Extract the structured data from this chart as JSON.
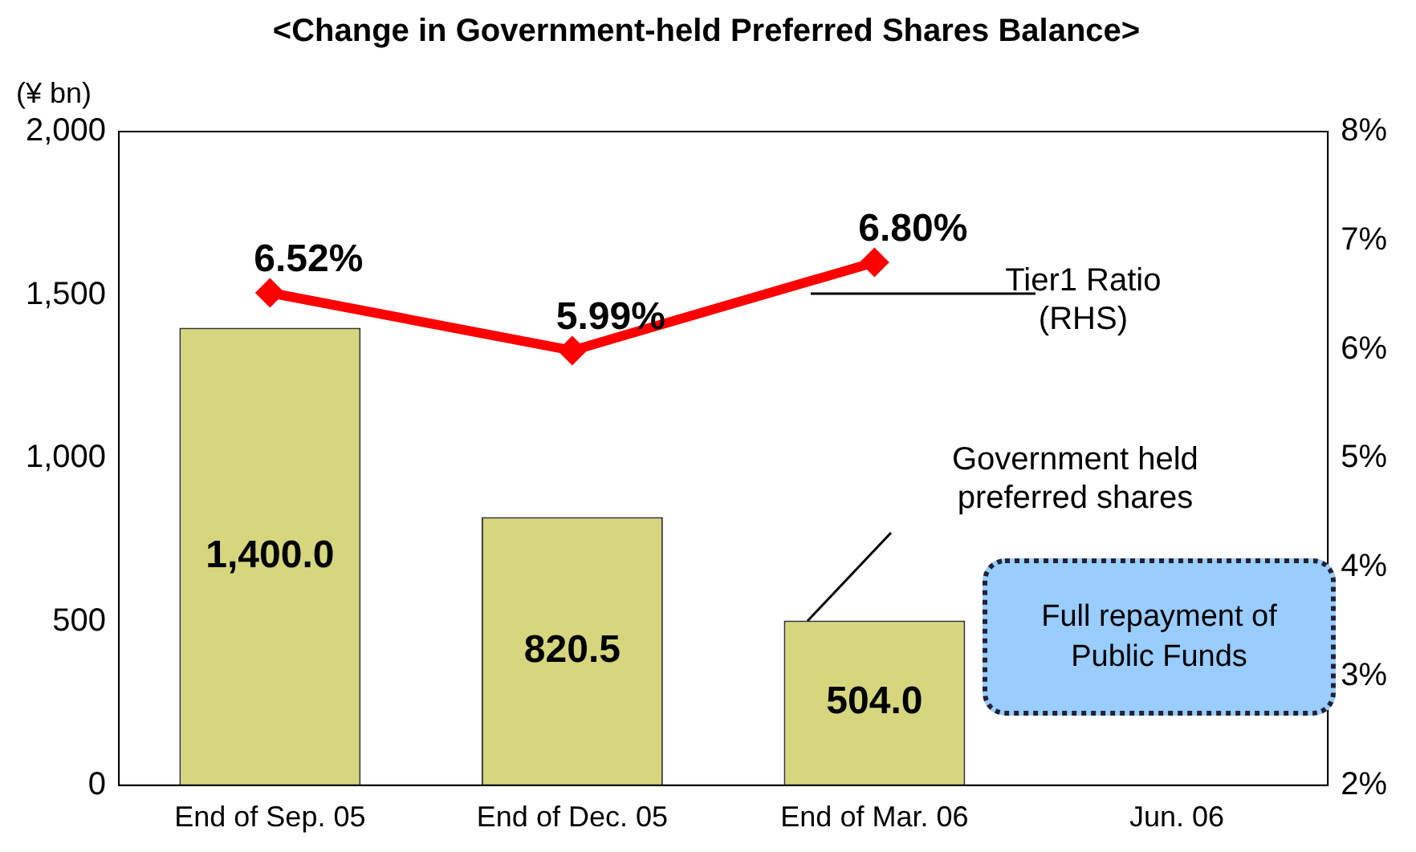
{
  "chart_data": {
    "type": "bar",
    "title": "<Change in Government-held Preferred Shares Balance>",
    "ylabel": "(¥ bn)",
    "categories": [
      "End of Sep. 05",
      "End of Dec. 05",
      "End of Mar. 06",
      "Jun. 06"
    ],
    "series": [
      {
        "name": "Government held preferred shares",
        "color": "#d6d67e",
        "values": [
          1400.0,
          820.5,
          504.0,
          null
        ],
        "value_labels": [
          "1,400.0",
          "820.5",
          "504.0",
          null
        ]
      },
      {
        "name": "Tier1 Ratio (RHS)",
        "type": "line",
        "axis": "y2",
        "color": "#ff0000",
        "marker": "diamond",
        "values": [
          6.52,
          5.99,
          6.8,
          null
        ],
        "value_labels": [
          "6.52%",
          "5.99%",
          "6.80%",
          null
        ]
      }
    ],
    "ylim": [
      0,
      2000
    ],
    "yticks": [
      0,
      {
        "value": 500,
        "label": "500"
      },
      {
        "value": 1000,
        "label": "1,000"
      },
      {
        "value": 1500,
        "label": "1,500"
      },
      {
        "value": 2000,
        "label": "2,000"
      }
    ],
    "y2lim": [
      2,
      8
    ],
    "y2ticks": [
      {
        "value": 2,
        "label": "2%"
      },
      {
        "value": 3,
        "label": "3%"
      },
      {
        "value": 4,
        "label": "4%"
      },
      {
        "value": 5,
        "label": "5%"
      },
      {
        "value": 6,
        "label": "6%"
      },
      {
        "value": 7,
        "label": "7%"
      },
      {
        "value": 8,
        "label": "8%"
      }
    ],
    "grid": false,
    "legend": false,
    "annotations": [
      "Full repayment of Public Funds"
    ]
  }
}
